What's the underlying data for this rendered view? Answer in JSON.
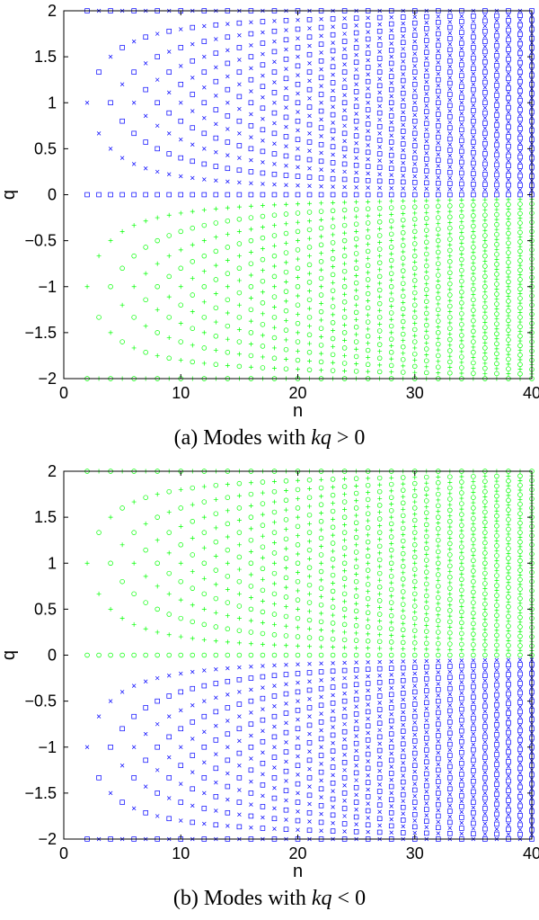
{
  "chart_data": [
    {
      "type": "scatter",
      "caption_prefix": "(a) Modes with ",
      "caption_var": "kq",
      "caption_suffix": " > 0",
      "xlabel": "n",
      "ylabel": "q",
      "xlim": [
        0,
        40
      ],
      "ylim": [
        -2,
        2
      ],
      "xticks": [
        "0",
        "10",
        "20",
        "30",
        "40"
      ],
      "yticks": [
        "−2",
        "−1.5",
        "−1",
        "−0.5",
        "0",
        "0.5",
        "1",
        "1.5",
        "2"
      ],
      "grid": false,
      "n_max": 40,
      "series": [
        {
          "color": "#0000ff",
          "marker": "square",
          "q_sign": 1,
          "parity": 0
        },
        {
          "color": "#0000ff",
          "marker": "x",
          "q_sign": 1,
          "parity": 1
        },
        {
          "color": "#00ff00",
          "marker": "circle",
          "q_sign": -1,
          "parity": 0
        },
        {
          "color": "#00ff00",
          "marker": "plus",
          "q_sign": -1,
          "parity": 1
        }
      ]
    },
    {
      "type": "scatter",
      "caption_prefix": "(b) Modes with ",
      "caption_var": "kq",
      "caption_suffix": " < 0",
      "xlabel": "n",
      "ylabel": "q",
      "xlim": [
        0,
        40
      ],
      "ylim": [
        -2,
        2
      ],
      "xticks": [
        "0",
        "10",
        "20",
        "30",
        "40"
      ],
      "yticks": [
        "−2",
        "−1.5",
        "−1",
        "−0.5",
        "0",
        "0.5",
        "1",
        "1.5",
        "2"
      ],
      "grid": false,
      "n_max": 40,
      "series": [
        {
          "color": "#00ff00",
          "marker": "circle",
          "q_sign": 1,
          "parity": 0
        },
        {
          "color": "#00ff00",
          "marker": "plus",
          "q_sign": 1,
          "parity": 1
        },
        {
          "color": "#0000ff",
          "marker": "square",
          "q_sign": -1,
          "parity": 0
        },
        {
          "color": "#0000ff",
          "marker": "x",
          "q_sign": -1,
          "parity": 1
        }
      ]
    }
  ]
}
